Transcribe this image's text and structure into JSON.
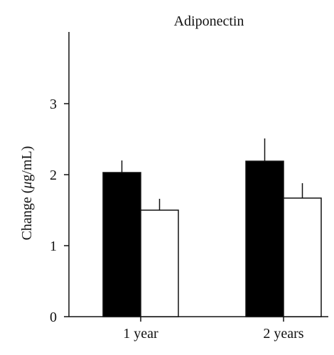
{
  "chart_data": {
    "type": "bar",
    "title": "Adiponectin",
    "xlabel": "",
    "ylabel_prefix": "Change (",
    "ylabel_unit_symbol": "μ",
    "ylabel_suffix": "g/mL)",
    "categories": [
      "1 year",
      "2 years"
    ],
    "ylim": [
      0,
      3.8
    ],
    "yticks": [
      0,
      1,
      2,
      3
    ],
    "grid": false,
    "legend": "none",
    "series": [
      {
        "color": "#000000",
        "values": [
          2.03,
          2.19
        ],
        "errors": [
          0.17,
          0.32
        ]
      },
      {
        "color": "#ffffff",
        "values": [
          1.5,
          1.67
        ],
        "errors": [
          0.16,
          0.21
        ]
      }
    ]
  }
}
